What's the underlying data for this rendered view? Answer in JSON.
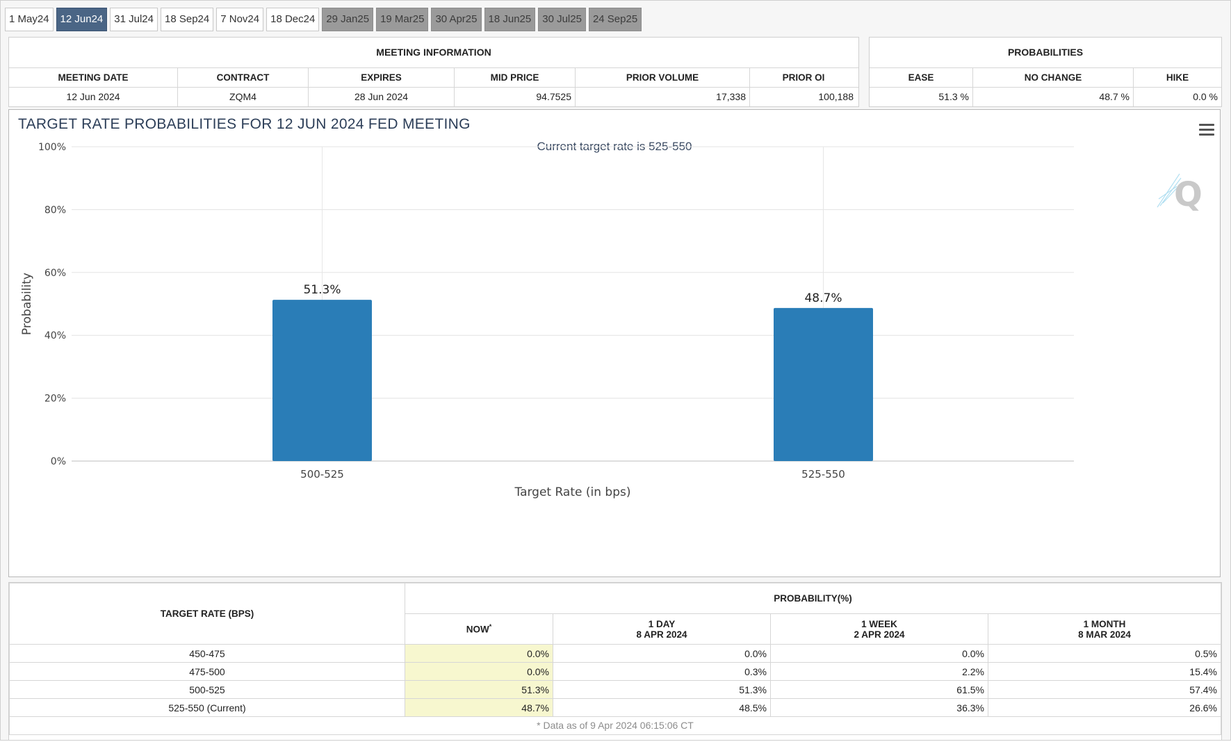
{
  "tabs": [
    {
      "label": "1 May24",
      "state": "normal"
    },
    {
      "label": "12 Jun24",
      "state": "active"
    },
    {
      "label": "31 Jul24",
      "state": "normal"
    },
    {
      "label": "18 Sep24",
      "state": "normal"
    },
    {
      "label": "7 Nov24",
      "state": "normal"
    },
    {
      "label": "18 Dec24",
      "state": "normal"
    },
    {
      "label": "29 Jan25",
      "state": "disabled"
    },
    {
      "label": "19 Mar25",
      "state": "disabled"
    },
    {
      "label": "30 Apr25",
      "state": "disabled"
    },
    {
      "label": "18 Jun25",
      "state": "disabled"
    },
    {
      "label": "30 Jul25",
      "state": "disabled"
    },
    {
      "label": "24 Sep25",
      "state": "disabled"
    }
  ],
  "meeting_info": {
    "title": "MEETING INFORMATION",
    "headers": [
      "MEETING DATE",
      "CONTRACT",
      "EXPIRES",
      "MID PRICE",
      "PRIOR VOLUME",
      "PRIOR OI"
    ],
    "values": [
      "12 Jun 2024",
      "ZQM4",
      "28 Jun 2024",
      "94.7525",
      "17,338",
      "100,188"
    ]
  },
  "probabilities": {
    "title": "PROBABILITIES",
    "headers": [
      "EASE",
      "NO CHANGE",
      "HIKE"
    ],
    "values": [
      "51.3 %",
      "48.7 %",
      "0.0 %"
    ]
  },
  "chart": {
    "title": "TARGET RATE PROBABILITIES FOR 12 JUN 2024 FED MEETING",
    "subtitle": "Current target rate is 525-550",
    "menu_icon": "hamburger-menu-icon",
    "watermark_icon": "q-logo-icon"
  },
  "chart_data": {
    "type": "bar",
    "title": "TARGET RATE PROBABILITIES FOR 12 JUN 2024 FED MEETING",
    "subtitle": "Current target rate is 525-550",
    "categories": [
      "500-525",
      "525-550"
    ],
    "values": [
      51.3,
      48.7
    ],
    "data_labels": [
      "51.3%",
      "48.7%"
    ],
    "xlabel": "Target Rate (in bps)",
    "ylabel": "Probability",
    "ylim": [
      0,
      100
    ],
    "yticks": [
      "0%",
      "20%",
      "40%",
      "60%",
      "80%",
      "100%"
    ],
    "ytick_values": [
      0,
      20,
      40,
      60,
      80,
      100
    ],
    "grid": true,
    "bar_color": "#2a7db7"
  },
  "bottom_table": {
    "rate_header": "TARGET RATE (BPS)",
    "prob_header": "PROBABILITY(%)",
    "columns": [
      {
        "line1": "NOW",
        "line2": "",
        "note": "*"
      },
      {
        "line1": "1 DAY",
        "line2": "8 APR 2024",
        "note": ""
      },
      {
        "line1": "1 WEEK",
        "line2": "2 APR 2024",
        "note": ""
      },
      {
        "line1": "1 MONTH",
        "line2": "8 MAR 2024",
        "note": ""
      }
    ],
    "rows": [
      {
        "rate": "450-475",
        "now": "0.0%",
        "day": "0.0%",
        "week": "0.0%",
        "month": "0.5%"
      },
      {
        "rate": "475-500",
        "now": "0.0%",
        "day": "0.3%",
        "week": "2.2%",
        "month": "15.4%"
      },
      {
        "rate": "500-525",
        "now": "51.3%",
        "day": "51.3%",
        "week": "61.5%",
        "month": "57.4%"
      },
      {
        "rate": "525-550 (Current)",
        "now": "48.7%",
        "day": "48.5%",
        "week": "36.3%",
        "month": "26.6%"
      }
    ],
    "footnote": "* Data as of 9 Apr 2024 06:15:06 CT"
  },
  "colors": {
    "tab_active": "#4a6585",
    "tab_disabled": "#9a9a9a",
    "bar": "#2a7db7",
    "now_highlight": "#f7f7cf"
  }
}
